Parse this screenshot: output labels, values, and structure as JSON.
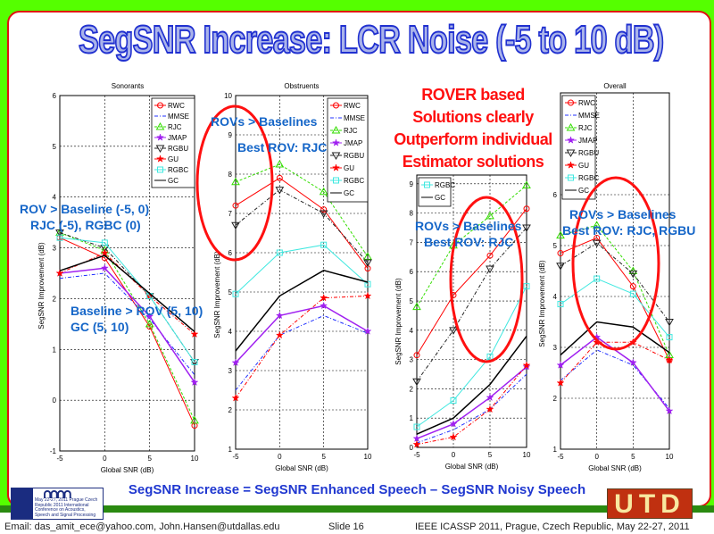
{
  "slide_title": "SegSNR Increase: LCR Noise (-5 to 10 dB)",
  "series_styles": {
    "RWC": {
      "color": "#ff0000",
      "dash": "",
      "marker": "circle"
    },
    "MMSE": {
      "color": "#2030ff",
      "dash": "4,2,1,2",
      "marker": "none"
    },
    "RJC": {
      "color": "#33dd00",
      "dash": "3,2",
      "marker": "triangle-up"
    },
    "JMAP": {
      "color": "#a020f0",
      "dash": "",
      "marker": "star"
    },
    "RGBU": {
      "color": "#222222",
      "dash": "4,2,1,2",
      "marker": "triangle-down"
    },
    "GU": {
      "color": "#ff0000",
      "dash": "4,2,1,2",
      "marker": "star"
    },
    "RGBC": {
      "color": "#40e8e0",
      "dash": "",
      "marker": "square"
    },
    "GC": {
      "color": "#000000",
      "dash": "",
      "marker": "none"
    }
  },
  "chart_data": [
    {
      "type": "line",
      "title": "Sonorants",
      "xlabel": "Global SNR (dB)",
      "ylabel": "SegSNR Improvement (dB)",
      "x": [
        -5,
        0,
        5,
        10
      ],
      "xticks": [
        "-5",
        "0",
        "5",
        "10"
      ],
      "ylim": [
        -1,
        6
      ],
      "yticks": [
        "-1",
        "0",
        "1",
        "2",
        "3",
        "4",
        "5",
        "6"
      ],
      "grid": true,
      "legend": "top-right",
      "legend_entries": [
        "RWC",
        "MMSE",
        "RJC",
        "JMAP",
        "RGBU",
        "GU",
        "RGBC",
        "GC"
      ],
      "series": [
        {
          "name": "RWC",
          "values": [
            3.2,
            2.8,
            1.45,
            -0.5
          ]
        },
        {
          "name": "MMSE",
          "values": [
            2.4,
            2.5,
            1.6,
            0.5
          ]
        },
        {
          "name": "RJC",
          "values": [
            3.3,
            2.95,
            1.5,
            -0.4
          ]
        },
        {
          "name": "JMAP",
          "values": [
            2.5,
            2.6,
            1.65,
            0.35
          ]
        },
        {
          "name": "RGBU",
          "values": [
            3.3,
            3.0,
            2.05,
            0.75
          ]
        },
        {
          "name": "GU",
          "values": [
            2.5,
            2.9,
            2.05,
            1.3
          ]
        },
        {
          "name": "RGBC",
          "values": [
            3.2,
            3.1,
            2.05,
            0.75
          ]
        },
        {
          "name": "GC",
          "values": [
            2.55,
            2.85,
            2.1,
            1.35
          ]
        }
      ]
    },
    {
      "type": "line",
      "title": "Obstruents",
      "xlabel": "Global SNR (dB)",
      "ylabel": "SegSNR Improvement (dB)",
      "x": [
        -5,
        0,
        5,
        10
      ],
      "xticks": [
        "-5",
        "0",
        "5",
        "10"
      ],
      "ylim": [
        1,
        10
      ],
      "yticks": [
        "1",
        "2",
        "3",
        "4",
        "5",
        "6",
        "7",
        "8",
        "9",
        "10"
      ],
      "grid": true,
      "legend": "top-right",
      "legend_entries": [
        "RWC",
        "MMSE",
        "RJC",
        "JMAP",
        "RGBU",
        "GU",
        "RGBC",
        "GC"
      ],
      "series": [
        {
          "name": "RWC",
          "values": [
            7.2,
            7.9,
            7.1,
            5.6
          ]
        },
        {
          "name": "MMSE",
          "values": [
            2.5,
            3.9,
            4.4,
            3.95
          ]
        },
        {
          "name": "RJC",
          "values": [
            7.8,
            8.25,
            7.55,
            5.9
          ]
        },
        {
          "name": "JMAP",
          "values": [
            3.2,
            4.4,
            4.65,
            4.0
          ]
        },
        {
          "name": "RGBU",
          "values": [
            6.7,
            7.6,
            7.0,
            5.75
          ]
        },
        {
          "name": "GU",
          "values": [
            2.3,
            3.9,
            4.85,
            4.9
          ]
        },
        {
          "name": "RGBC",
          "values": [
            4.95,
            6.0,
            6.2,
            5.2
          ]
        },
        {
          "name": "GC",
          "values": [
            3.5,
            4.9,
            5.55,
            5.25
          ]
        }
      ]
    },
    {
      "type": "line",
      "title": "",
      "xlabel": "Global SNR (dB)",
      "ylabel": "SegSNR Improvement (dB)",
      "x": [
        -5,
        0,
        5,
        10
      ],
      "xticks": [
        "-5",
        "0",
        "5",
        "10"
      ],
      "ylim": [
        0,
        9.3
      ],
      "yticks": [
        "0",
        "1",
        "2",
        "3",
        "4",
        "5",
        "6",
        "7",
        "8",
        "9"
      ],
      "grid": true,
      "legend": "top-left",
      "legend_entries": [
        "RGBC",
        "GC"
      ],
      "series": [
        {
          "name": "RWC",
          "values": [
            3.15,
            5.2,
            6.55,
            8.15
          ]
        },
        {
          "name": "MMSE",
          "values": [
            0.15,
            0.6,
            1.3,
            2.5
          ]
        },
        {
          "name": "RJC",
          "values": [
            4.8,
            6.9,
            7.9,
            8.95
          ]
        },
        {
          "name": "JMAP",
          "values": [
            0.3,
            0.8,
            1.7,
            2.75
          ]
        },
        {
          "name": "RGBU",
          "values": [
            2.25,
            4.0,
            6.1,
            7.5
          ]
        },
        {
          "name": "GU",
          "values": [
            0.1,
            0.35,
            1.3,
            2.8
          ]
        },
        {
          "name": "RGBC",
          "values": [
            0.7,
            1.6,
            3.1,
            5.5
          ]
        },
        {
          "name": "GC",
          "values": [
            0.45,
            1.0,
            2.15,
            3.8
          ]
        }
      ]
    },
    {
      "type": "line",
      "title": "Overall",
      "xlabel": "Global SNR (dB)",
      "ylabel": "SegSNR Improvement (dB)",
      "x": [
        -5,
        0,
        5,
        10
      ],
      "xticks": [
        "-5",
        "0",
        "5",
        "10"
      ],
      "ylim": [
        1,
        8
      ],
      "yticks": [
        "1",
        "2",
        "3",
        "4",
        "5",
        "6"
      ],
      "grid": true,
      "legend": "top-left",
      "legend_entries": [
        "RWC",
        "MMSE",
        "RJC",
        "JMAP",
        "RGBU",
        "GU",
        "RGBC",
        "GC"
      ],
      "series": [
        {
          "name": "RWC",
          "values": [
            4.85,
            5.15,
            4.2,
            2.75
          ]
        },
        {
          "name": "MMSE",
          "values": [
            2.35,
            2.95,
            2.65,
            1.8
          ]
        },
        {
          "name": "RJC",
          "values": [
            5.2,
            5.4,
            4.5,
            2.85
          ]
        },
        {
          "name": "JMAP",
          "values": [
            2.65,
            3.2,
            2.7,
            1.75
          ]
        },
        {
          "name": "RGBU",
          "values": [
            4.6,
            5.05,
            4.45,
            3.5
          ]
        },
        {
          "name": "GU",
          "values": [
            2.3,
            3.1,
            3.1,
            2.75
          ]
        },
        {
          "name": "RGBC",
          "values": [
            3.85,
            4.35,
            4.05,
            3.2
          ]
        },
        {
          "name": "GC",
          "values": [
            2.85,
            3.5,
            3.4,
            2.9
          ]
        }
      ]
    }
  ],
  "annotations": {
    "sonorants_rov_1": "ROV > Baseline (-5, 0)",
    "sonorants_rov_2": "RJC (-5), RGBC (0)",
    "sonorants_base_1": "Baseline > ROV (5, 10)",
    "sonorants_base_2": "GC (5, 10)",
    "obstruents_1": "ROVs > Baselines",
    "obstruents_2": "Best ROV: RJC",
    "third_1": "ROVs > Baselines",
    "third_2": "Best ROV: RJC",
    "overall_1": "ROVs > Baselines",
    "overall_2": "Best ROV: RJC, RGBU",
    "rover_lines": [
      "ROVER based",
      "Solutions clearly",
      "Outperform individual",
      "Estimator solutions"
    ]
  },
  "formula": "SegSNR Increase = SegSNR Enhanced Speech – SegSNR Noisy Speech",
  "footer": {
    "email": "Email: das_amit_ece@yahoo.com, John.Hansen@utdallas.edu",
    "slide": "Slide  16",
    "conference": "IEEE ICASSP 2011, Prague, Czech Republic, May 22-27, 2011",
    "icassp_logo_text": "May 22-27, 2011 Prague Czech Republic 2011 International Conference on Acoustics, Speech and Signal Processing",
    "utd_logo_text": "UTD"
  }
}
